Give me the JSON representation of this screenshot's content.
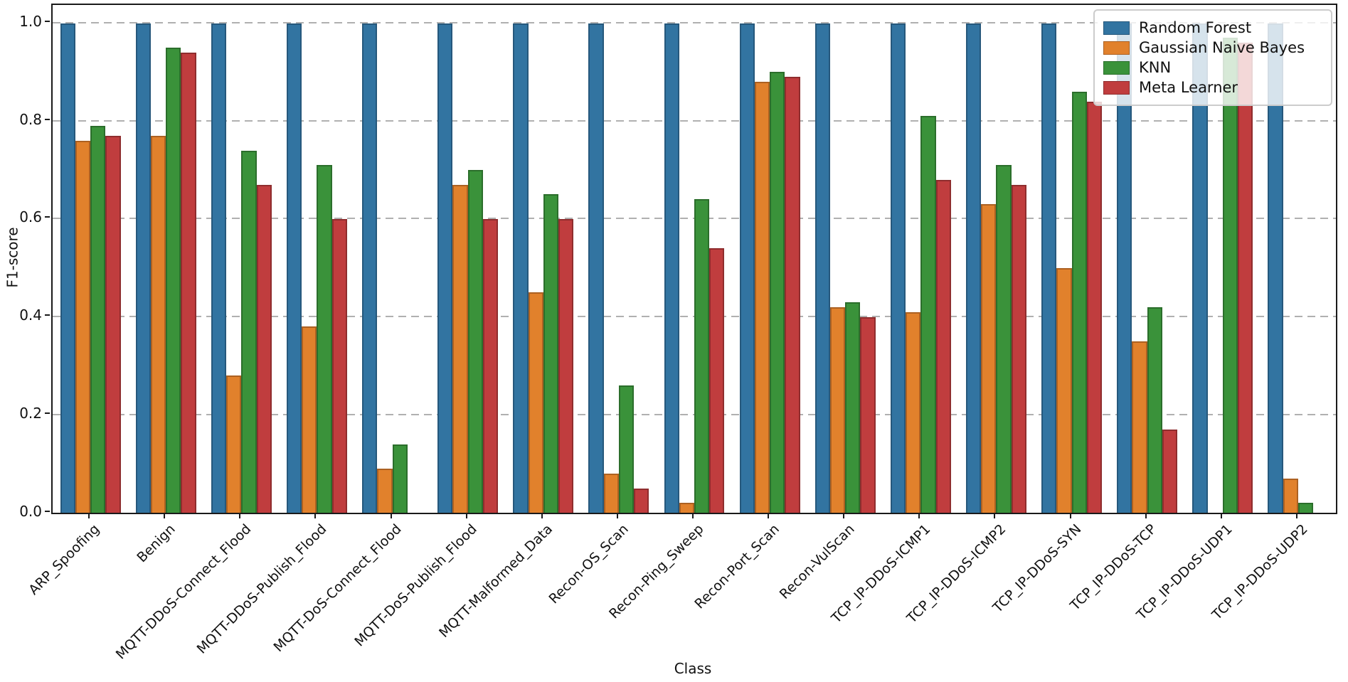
{
  "chart_data": {
    "type": "bar",
    "title": "",
    "xlabel": "Class",
    "ylabel": "F1-score",
    "ylim": [
      0.0,
      1.037
    ],
    "yticks": [
      "0.0",
      "0.2",
      "0.4",
      "0.6",
      "0.8",
      "1.0"
    ],
    "grid": {
      "axis": "y",
      "style": "dashed",
      "color": "#b0b0b0"
    },
    "legend_position": "upper-right",
    "categories": [
      "ARP_Spoofing",
      "Benign",
      "MQTT-DDoS-Connect_Flood",
      "MQTT-DDoS-Publish_Flood",
      "MQTT-DoS-Connect_Flood",
      "MQTT-DoS-Publish_Flood",
      "MQTT-Malformed_Data",
      "Recon-OS_Scan",
      "Recon-Ping_Sweep",
      "Recon-Port_Scan",
      "Recon-VulScan",
      "TCP_IP-DDoS-ICMP1",
      "TCP_IP-DDoS-ICMP2",
      "TCP_IP-DDoS-SYN",
      "TCP_IP-DDoS-TCP",
      "TCP_IP-DDoS-UDP1",
      "TCP_IP-DDoS-UDP2"
    ],
    "series": [
      {
        "name": "Random Forest",
        "color": "#3274A1",
        "edge_color": "#26587C",
        "values": [
          1.0,
          1.0,
          1.0,
          1.0,
          1.0,
          1.0,
          1.0,
          1.0,
          1.0,
          1.0,
          1.0,
          1.0,
          1.0,
          1.0,
          1.0,
          1.0,
          1.0
        ]
      },
      {
        "name": "Gaussian Naive Bayes",
        "color": "#E1812C",
        "edge_color": "#AC6122",
        "values": [
          0.76,
          0.77,
          0.28,
          0.38,
          0.09,
          0.67,
          0.45,
          0.08,
          0.02,
          0.88,
          0.42,
          0.41,
          0.63,
          0.5,
          0.35,
          0.0,
          0.07
        ]
      },
      {
        "name": "KNN",
        "color": "#3A923A",
        "edge_color": "#2B6E2B",
        "values": [
          0.79,
          0.95,
          0.74,
          0.71,
          0.14,
          0.7,
          0.65,
          0.26,
          0.64,
          0.9,
          0.43,
          0.81,
          0.71,
          0.86,
          0.42,
          0.97,
          0.02
        ]
      },
      {
        "name": "Meta Learner",
        "color": "#C03D3E",
        "edge_color": "#8F2D2E",
        "values": [
          0.77,
          0.94,
          0.67,
          0.6,
          0.0,
          0.6,
          0.6,
          0.05,
          0.54,
          0.89,
          0.4,
          0.68,
          0.67,
          0.84,
          0.17,
          0.96,
          0.0
        ]
      }
    ]
  }
}
